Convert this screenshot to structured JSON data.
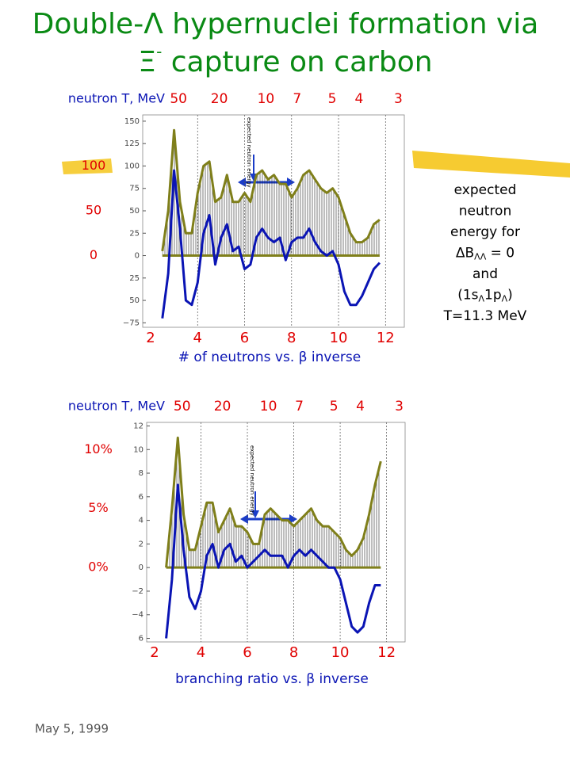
{
  "title": [
    "Double-Λ hypernuclei formation via",
    [
      "Ξ",
      "-",
      " capture on carbon"
    ]
  ],
  "footer": "May 5, 1999",
  "side_note": [
    [
      "expected"
    ],
    [
      "neutron"
    ],
    [
      "energy for"
    ],
    [
      "ΔB",
      "ΛΛ",
      " = 0"
    ],
    [
      "and"
    ],
    [
      "(1s",
      "Λ",
      "1p",
      "Λ",
      ")"
    ],
    [
      "T=11.3 MeV"
    ]
  ],
  "chart_data": [
    {
      "type": "line",
      "x_label": "# of neutrons vs. β inverse",
      "x2_label": "neutron T, MeV",
      "annotation": "expected neutron energy",
      "xlim": [
        2,
        12.8
      ],
      "xticks": [
        2,
        4,
        6,
        8,
        10,
        12
      ],
      "x2ticks": [
        50,
        20,
        10,
        7,
        5,
        4,
        3
      ],
      "ylim": [
        -80,
        157
      ],
      "yticks": [
        150,
        125,
        100,
        75,
        50,
        25,
        0,
        {
          "value": -25,
          "label": "25"
        },
        {
          "value": -50,
          "label": "50"
        },
        {
          "value": -75,
          "label": "−75"
        }
      ],
      "left_ticks": [
        100,
        50,
        0
      ],
      "grid": true,
      "x": [
        2.5,
        2.75,
        3,
        3.25,
        3.5,
        3.75,
        4,
        4.25,
        4.5,
        4.75,
        5,
        5.25,
        5.5,
        5.75,
        6,
        6.25,
        6.5,
        6.75,
        7,
        7.25,
        7.5,
        7.75,
        8,
        8.25,
        8.5,
        8.75,
        9,
        9.25,
        9.5,
        9.75,
        10,
        10.25,
        10.5,
        10.75,
        11,
        11.25,
        11.5,
        11.75
      ],
      "series": [
        {
          "color": "#7f7f1a",
          "fill": "hatch",
          "values": [
            5,
            50,
            140,
            60,
            25,
            25,
            70,
            100,
            105,
            60,
            65,
            90,
            60,
            60,
            70,
            60,
            90,
            95,
            85,
            90,
            80,
            80,
            65,
            75,
            90,
            95,
            85,
            75,
            70,
            75,
            65,
            45,
            25,
            15,
            15,
            20,
            35,
            40
          ]
        },
        {
          "color": "#0a14b4",
          "values": [
            -70,
            -20,
            95,
            30,
            -50,
            -55,
            -30,
            25,
            45,
            -10,
            20,
            35,
            5,
            10,
            -15,
            -10,
            20,
            30,
            20,
            15,
            20,
            -5,
            15,
            20,
            20,
            30,
            15,
            5,
            0,
            5,
            -10,
            -40,
            -55,
            -55,
            -45,
            -30,
            -15,
            -8
          ]
        }
      ]
    },
    {
      "type": "line",
      "x_label": "branching ratio vs. β inverse",
      "x2_label": "neutron T, MeV",
      "annotation": "expected neutron energy",
      "xlim": [
        2,
        12.8
      ],
      "xticks": [
        2,
        4,
        6,
        8,
        10,
        12
      ],
      "x2ticks": [
        50,
        20,
        10,
        7,
        5,
        4,
        3
      ],
      "ylim": [
        -6.3,
        12.3
      ],
      "yticks": [
        12,
        10,
        8,
        6,
        4,
        2,
        0,
        {
          "value": -2,
          "label": "−2"
        },
        {
          "value": -4,
          "label": "−4"
        },
        {
          "value": -6,
          "label": "6"
        }
      ],
      "left_ticks": [
        {
          "value": 10,
          "label": "10%"
        },
        {
          "value": 5,
          "label": "5%"
        },
        {
          "value": 0,
          "label": "0%"
        }
      ],
      "grid": true,
      "x": [
        2.5,
        2.75,
        3,
        3.25,
        3.5,
        3.75,
        4,
        4.25,
        4.5,
        4.75,
        5,
        5.25,
        5.5,
        5.75,
        6,
        6.25,
        6.5,
        6.75,
        7,
        7.25,
        7.5,
        7.75,
        8,
        8.25,
        8.5,
        8.75,
        9,
        9.25,
        9.5,
        9.75,
        10,
        10.25,
        10.5,
        10.75,
        11,
        11.25,
        11.5,
        11.75
      ],
      "series": [
        {
          "color": "#7f7f1a",
          "fill": "hatch",
          "values": [
            0,
            5,
            11,
            4.5,
            1.5,
            1.5,
            3.5,
            5.5,
            5.5,
            3,
            4,
            5,
            3.5,
            3.5,
            3,
            2,
            2,
            4.5,
            5,
            4.5,
            4,
            4,
            3.5,
            4,
            4.5,
            5,
            4,
            3.5,
            3.5,
            3,
            2.5,
            1.5,
            1,
            1.5,
            2.5,
            4.5,
            7,
            9
          ]
        },
        {
          "color": "#0a14b4",
          "values": [
            -6,
            -1,
            7,
            1.5,
            -2.5,
            -3.5,
            -2,
            1,
            2,
            0,
            1.5,
            2,
            0.5,
            1,
            0,
            0.5,
            1,
            1.5,
            1,
            1,
            1,
            0,
            1,
            1.5,
            1,
            1.5,
            1,
            0.5,
            0,
            0,
            -1,
            -3,
            -5,
            -5.5,
            -5,
            -3,
            -1.5,
            -1.5
          ]
        }
      ]
    }
  ]
}
